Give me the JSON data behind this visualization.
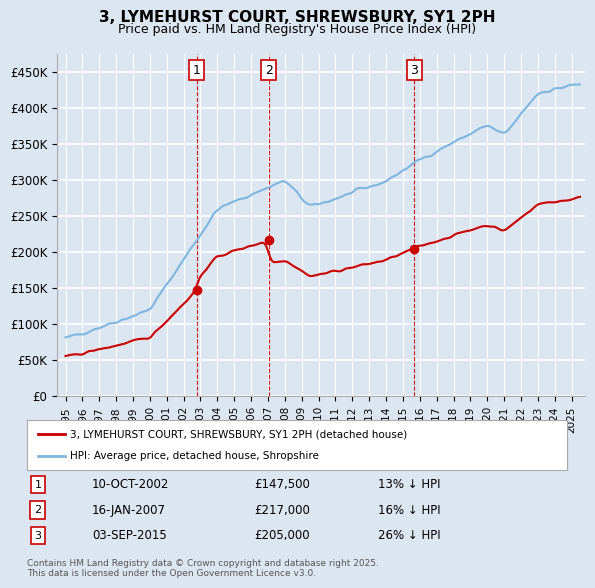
{
  "title_line1": "3, LYMEHURST COURT, SHREWSBURY, SY1 2PH",
  "title_line2": "Price paid vs. HM Land Registry's House Price Index (HPI)",
  "ylabel": "",
  "ylim": [
    0,
    475000
  ],
  "yticks": [
    0,
    50000,
    100000,
    150000,
    200000,
    250000,
    300000,
    350000,
    400000,
    450000
  ],
  "ytick_labels": [
    "£0",
    "£50K",
    "£100K",
    "£150K",
    "£200K",
    "£250K",
    "£300K",
    "£350K",
    "£400K",
    "£450K"
  ],
  "background_color": "#dce6f1",
  "plot_bg_color": "#dce6f1",
  "grid_color": "#ffffff",
  "hpi_color": "#7EB6E0",
  "price_color": "#CC0000",
  "sale_marker_color": "#CC0000",
  "vline_color": "#CC0000",
  "transactions": [
    {
      "num": 1,
      "date_label": "10-OCT-2002",
      "price": 147500,
      "pct": "13%",
      "x_year": 2002.78
    },
    {
      "num": 2,
      "date_label": "16-JAN-2007",
      "price": 217000,
      "pct": "16%",
      "x_year": 2007.04
    },
    {
      "num": 3,
      "date_label": "03-SEP-2015",
      "price": 205000,
      "pct": "26%",
      "x_year": 2015.67
    }
  ],
  "legend_line1": "3, LYMEHURST COURT, SHREWSBURY, SY1 2PH (detached house)",
  "legend_line2": "HPI: Average price, detached house, Shropshire",
  "footnote": "Contains HM Land Registry data © Crown copyright and database right 2025.\nThis data is licensed under the Open Government Licence v3.0.",
  "xlim_start": 1994.5,
  "xlim_end": 2025.8
}
